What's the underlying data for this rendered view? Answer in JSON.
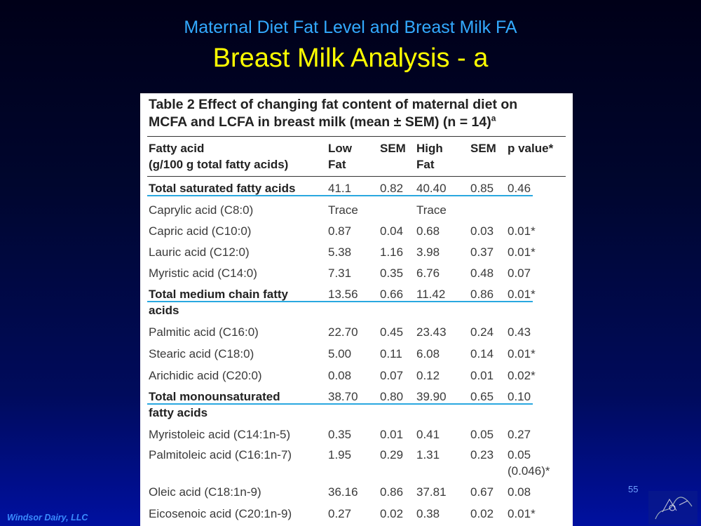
{
  "slide": {
    "subtitle": "Maternal Diet Fat Level and Breast Milk FA",
    "title": "Breast Milk Analysis - a",
    "footer": "Windsor Dairy, LLC",
    "page_number": "55",
    "logo_icon": "sketch-logo-icon"
  },
  "table": {
    "caption_line1": "Table 2 Effect of changing fat content of maternal diet on",
    "caption_line2": "MCFA and LCFA in breast milk (mean ± SEM) (n = 14)",
    "caption_sup": "a",
    "headers": {
      "fatty_acid_1": "Fatty acid",
      "fatty_acid_2": "(g/100 g total fatty acids)",
      "low_1": "Low",
      "low_2": "Fat",
      "sem1": "SEM",
      "high_1": "High",
      "high_2": "Fat",
      "sem2": "SEM",
      "p": "p value*"
    },
    "rows": [
      {
        "name": "Total saturated fatty acids",
        "low": "41.1",
        "sem1": "0.82",
        "high": "40.40",
        "sem2": "0.85",
        "p": "0.46"
      },
      {
        "name": "Caprylic acid (C8:0)",
        "low": "Trace",
        "sem1": "",
        "high": "Trace",
        "sem2": "",
        "p": ""
      },
      {
        "name": "Capric acid (C10:0)",
        "low": "0.87",
        "sem1": "0.04",
        "high": "0.68",
        "sem2": "0.03",
        "p": "0.01*"
      },
      {
        "name": "Lauric acid (C12:0)",
        "low": "5.38",
        "sem1": "1.16",
        "high": "3.98",
        "sem2": "0.37",
        "p": "0.01*"
      },
      {
        "name": "Myristic acid (C14:0)",
        "low": "7.31",
        "sem1": "0.35",
        "high": "6.76",
        "sem2": "0.48",
        "p": "0.07"
      },
      {
        "name": "Total medium chain fatty",
        "name2": "acids",
        "low": "13.56",
        "sem1": "0.66",
        "high": "11.42",
        "sem2": "0.86",
        "p": "0.01*"
      },
      {
        "name": "Palmitic acid (C16:0)",
        "low": "22.70",
        "sem1": "0.45",
        "high": "23.43",
        "sem2": "0.24",
        "p": "0.43"
      },
      {
        "name": "Stearic acid (C18:0)",
        "low": "5.00",
        "sem1": "0.11",
        "high": "6.08",
        "sem2": "0.14",
        "p": "0.01*"
      },
      {
        "name": "Arichidic acid (C20:0)",
        "low": "0.08",
        "sem1": "0.07",
        "high": "0.12",
        "sem2": "0.01",
        "p": "0.02*"
      },
      {
        "name": "Total monounsaturated",
        "name2": "fatty acids",
        "low": "38.70",
        "sem1": "0.80",
        "high": "39.90",
        "sem2": "0.65",
        "p": "0.10"
      },
      {
        "name": "Myristoleic acid (C14:1n-5)",
        "low": "0.35",
        "sem1": "0.01",
        "high": "0.41",
        "sem2": "0.05",
        "p": "0.27"
      },
      {
        "name": "Palmitoleic acid (C16:1n-7)",
        "low": "1.95",
        "sem1": "0.29",
        "high": "1.31",
        "sem2": "0.23",
        "p": "0.05",
        "p2": "(0.046)*"
      },
      {
        "name": "Oleic acid (C18:1n-9)",
        "low": "36.16",
        "sem1": "0.86",
        "high": "37.81",
        "sem2": "0.67",
        "p": "0.08"
      },
      {
        "name": "Eicosenoic acid (C20:1n-9)",
        "low": "0.27",
        "sem1": "0.02",
        "high": "0.38",
        "sem2": "0.02",
        "p": "0.01*"
      }
    ]
  }
}
